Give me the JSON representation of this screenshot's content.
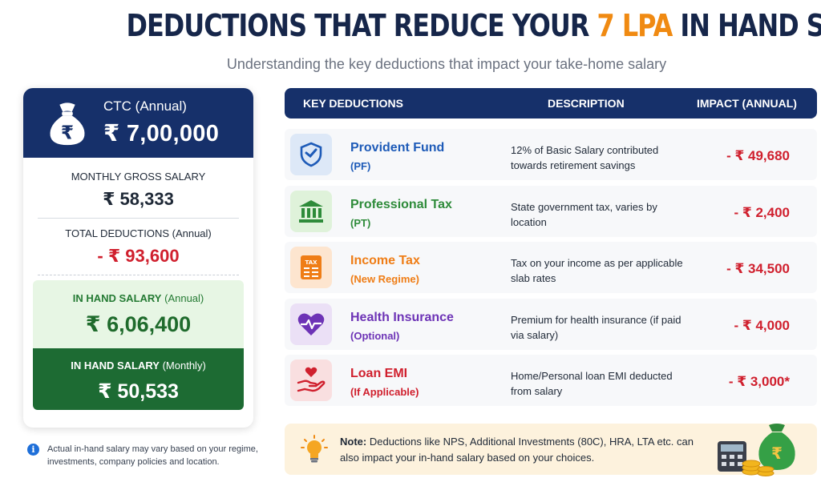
{
  "header": {
    "title_prefix": "DEDUCTIONS THAT REDUCE YOUR",
    "title_accent": "7 LPA",
    "title_suffix": "IN HAND SALARY",
    "subtitle": "Understanding the key deductions that impact your take-home salary"
  },
  "summary": {
    "ctc_label": "CTC (Annual)",
    "ctc_value": "₹ 7,00,000",
    "ctc_icon": "money-bag-icon",
    "gross_label": "MONTHLY GROSS SALARY",
    "gross_value": "₹ 58,333",
    "deductions_label": "TOTAL DEDUCTIONS (Annual)",
    "deductions_value": "- ₹ 93,600",
    "inhand_annual_label": "IN HAND SALARY",
    "inhand_annual_suffix": "(Annual)",
    "inhand_annual_value": "₹ 6,06,400",
    "inhand_monthly_label": "IN HAND SALARY",
    "inhand_monthly_suffix": "(Monthly)",
    "inhand_monthly_value": "₹ 50,533"
  },
  "footnote": "Actual in-hand salary may vary based on your regime, investments, company policies and location.",
  "table": {
    "col_deductions": "KEY DEDUCTIONS",
    "col_description": "DESCRIPTION",
    "col_impact": "IMPACT (ANNUAL)",
    "rows": [
      {
        "name": "Provident Fund",
        "sub": "(PF)",
        "desc": "12% of Basic Salary contributed towards retirement savings",
        "impact": "- ₹ 49,680",
        "icon": "shield-icon",
        "color": "#1e5bb8",
        "bg": "#dde8f7"
      },
      {
        "name": "Professional Tax",
        "sub": "(PT)",
        "desc": "State government tax, varies by location",
        "impact": "- ₹ 2,400",
        "icon": "bank-icon",
        "color": "#2e8b3a",
        "bg": "#dff2da"
      },
      {
        "name": "Income Tax",
        "sub": "(New Regime)",
        "desc": "Tax on your income as per applicable slab rates",
        "impact": "- ₹ 34,500",
        "icon": "tax-document-icon",
        "color": "#ef7d16",
        "bg": "#fde5cf"
      },
      {
        "name": "Health Insurance",
        "sub": "(Optional)",
        "desc": "Premium for health insurance (if paid via salary)",
        "impact": "- ₹ 4,000",
        "icon": "heart-pulse-icon",
        "color": "#6d33b6",
        "bg": "#ebe0f6"
      },
      {
        "name": "Loan EMI",
        "sub": "(If Applicable)",
        "desc": "Home/Personal loan EMI deducted from salary",
        "impact": "- ₹ 3,000*",
        "icon": "hand-coin-icon",
        "color": "#d0202e",
        "bg": "#f9dfe0"
      }
    ]
  },
  "note": {
    "label": "Note:",
    "text": "Deductions like NPS, Additional Investments (80C), HRA, LTA etc. can also impact your in-hand salary based on your choices.",
    "icon": "lightbulb-icon"
  },
  "colors": {
    "navy": "#16306a",
    "accent_orange": "#f08a12",
    "deduction_red": "#d0202e",
    "green_dark": "#1d6b33",
    "green_light": "#e7f6e4"
  }
}
